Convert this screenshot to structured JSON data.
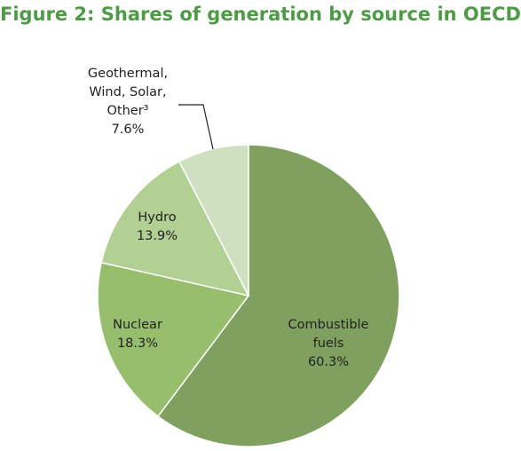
{
  "chart_data": {
    "type": "pie",
    "title": "Figure 2: Shares of generation by source in OECD",
    "categories": [
      "Combustible fuels",
      "Nuclear",
      "Hydro",
      "Geothermal, Wind, Solar, Other³"
    ],
    "values": [
      60.3,
      18.3,
      13.9,
      7.6
    ],
    "value_labels": [
      "60.3%",
      "18.3%",
      "13.9%",
      "7.6%"
    ],
    "colors": [
      "#7fa05e",
      "#97be6c",
      "#b2d093",
      "#cfe0c1"
    ]
  }
}
